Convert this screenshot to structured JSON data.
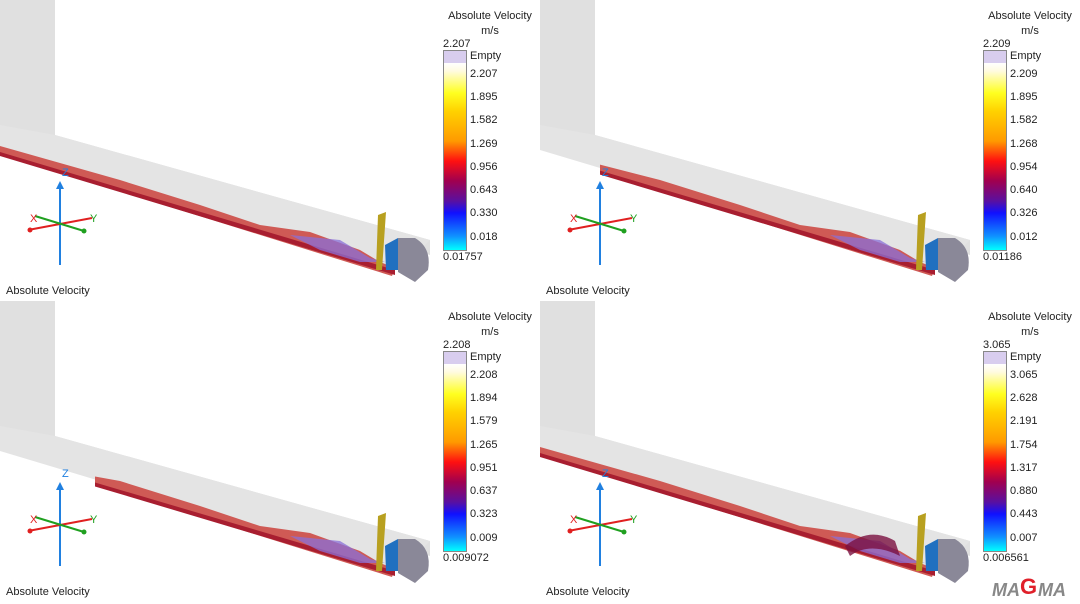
{
  "panels": [
    {
      "caption": "Absolute Velocity",
      "legend": {
        "title": "Absolute Velocity",
        "unit": "m/s",
        "max": "2.207",
        "empty": "Empty",
        "ticks": [
          "2.207",
          "1.895",
          "1.582",
          "1.269",
          "0.956",
          "0.643",
          "0.330",
          "0.018"
        ],
        "min": "0.01757"
      }
    },
    {
      "caption": "Absolute Velocity",
      "legend": {
        "title": "Absolute Velocity",
        "unit": "m/s",
        "max": "2.209",
        "empty": "Empty",
        "ticks": [
          "2.209",
          "1.895",
          "1.582",
          "1.268",
          "0.954",
          "0.640",
          "0.326",
          "0.012"
        ],
        "min": "0.01186"
      }
    },
    {
      "caption": "Absolute Velocity",
      "legend": {
        "title": "Absolute Velocity",
        "unit": "m/s",
        "max": "2.208",
        "empty": "Empty",
        "ticks": [
          "2.208",
          "1.894",
          "1.579",
          "1.265",
          "0.951",
          "0.637",
          "0.323",
          "0.009"
        ],
        "min": "0.009072"
      }
    },
    {
      "caption": "Absolute Velocity",
      "legend": {
        "title": "Absolute Velocity",
        "unit": "m/s",
        "max": "3.065",
        "empty": "Empty",
        "ticks": [
          "3.065",
          "2.628",
          "2.191",
          "1.754",
          "1.317",
          "0.880",
          "0.443",
          "0.007"
        ],
        "min": "0.006561"
      }
    }
  ],
  "axes": {
    "x": "X",
    "y": "Y",
    "z": "Z"
  },
  "logo": "MAGMA",
  "colors": {
    "geometry": "#e0e0e0",
    "melt": "#c84040",
    "x_axis": "#e02020",
    "y_axis": "#20a020",
    "z_axis": "#2080e0",
    "logo_gray": "#888888",
    "logo_red": "#e0202a"
  }
}
